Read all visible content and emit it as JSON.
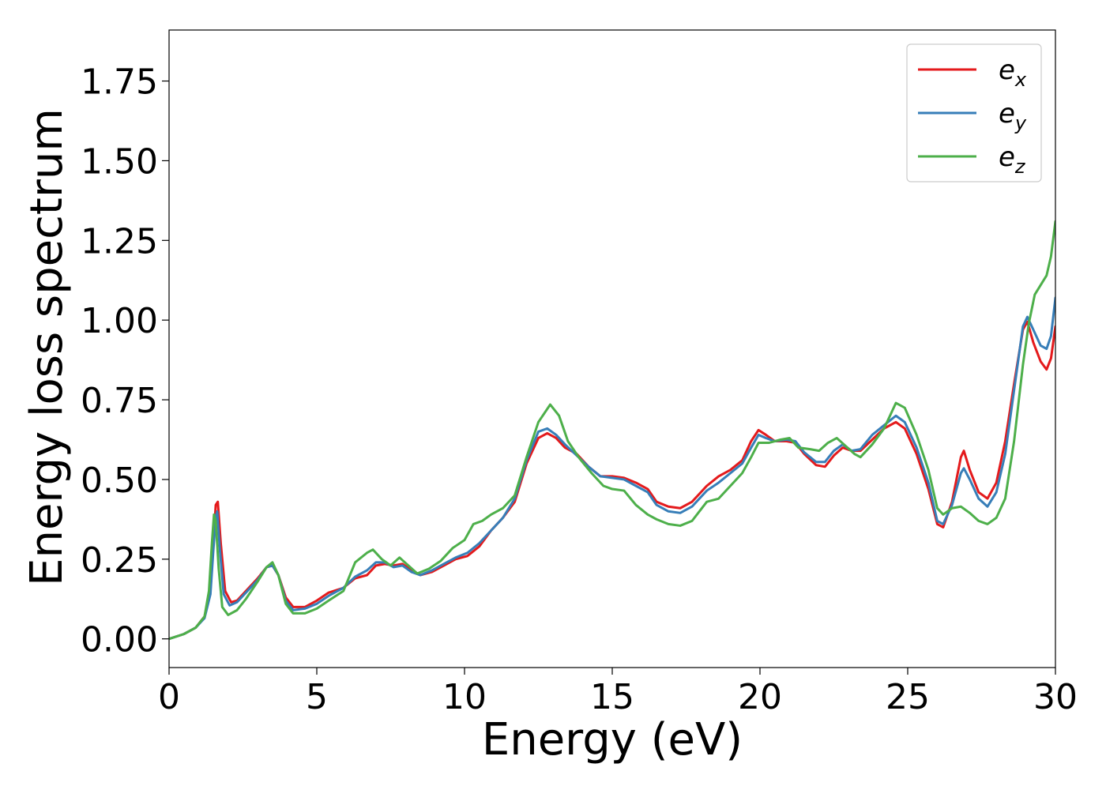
{
  "chart_data": {
    "type": "line",
    "title": "",
    "xlabel": "Energy (eV)",
    "ylabel": "Energy loss spectrum",
    "xlim": [
      0,
      30
    ],
    "ylim": [
      -0.09,
      1.91
    ],
    "xticks": [
      0,
      5,
      10,
      15,
      20,
      25,
      30
    ],
    "xtick_labels": [
      "0",
      "5",
      "10",
      "15",
      "20",
      "25",
      "30"
    ],
    "yticks": [
      0.0,
      0.25,
      0.5,
      0.75,
      1.0,
      1.25,
      1.5,
      1.75
    ],
    "ytick_labels": [
      "0.00",
      "0.25",
      "0.50",
      "0.75",
      "1.00",
      "1.25",
      "1.50",
      "1.75"
    ],
    "grid": false,
    "legend_position": "top-right",
    "series": [
      {
        "name": "e_x",
        "legend_base": "e",
        "legend_sub": "x",
        "color": "#e41a1c",
        "points": [
          [
            0,
            0
          ],
          [
            0.5,
            0.015
          ],
          [
            0.9,
            0.035
          ],
          [
            1.2,
            0.07
          ],
          [
            1.4,
            0.15
          ],
          [
            1.5,
            0.3
          ],
          [
            1.58,
            0.42
          ],
          [
            1.65,
            0.43
          ],
          [
            1.75,
            0.3
          ],
          [
            1.9,
            0.15
          ],
          [
            2.1,
            0.115
          ],
          [
            2.3,
            0.12
          ],
          [
            2.6,
            0.15
          ],
          [
            3.0,
            0.19
          ],
          [
            3.3,
            0.225
          ],
          [
            3.5,
            0.23
          ],
          [
            3.7,
            0.2
          ],
          [
            3.95,
            0.13
          ],
          [
            4.2,
            0.1
          ],
          [
            4.6,
            0.1
          ],
          [
            5.0,
            0.12
          ],
          [
            5.4,
            0.145
          ],
          [
            5.9,
            0.16
          ],
          [
            6.3,
            0.19
          ],
          [
            6.7,
            0.2
          ],
          [
            7.0,
            0.23
          ],
          [
            7.3,
            0.235
          ],
          [
            7.6,
            0.23
          ],
          [
            7.9,
            0.235
          ],
          [
            8.2,
            0.215
          ],
          [
            8.5,
            0.2
          ],
          [
            8.9,
            0.21
          ],
          [
            9.3,
            0.23
          ],
          [
            9.7,
            0.25
          ],
          [
            10.1,
            0.26
          ],
          [
            10.5,
            0.29
          ],
          [
            10.9,
            0.34
          ],
          [
            11.3,
            0.38
          ],
          [
            11.7,
            0.43
          ],
          [
            12.1,
            0.55
          ],
          [
            12.5,
            0.63
          ],
          [
            12.8,
            0.645
          ],
          [
            13.1,
            0.63
          ],
          [
            13.4,
            0.6
          ],
          [
            13.8,
            0.58
          ],
          [
            14.2,
            0.54
          ],
          [
            14.6,
            0.51
          ],
          [
            15.0,
            0.51
          ],
          [
            15.4,
            0.505
          ],
          [
            15.8,
            0.49
          ],
          [
            16.2,
            0.47
          ],
          [
            16.5,
            0.43
          ],
          [
            16.9,
            0.415
          ],
          [
            17.3,
            0.41
          ],
          [
            17.7,
            0.43
          ],
          [
            18.2,
            0.48
          ],
          [
            18.6,
            0.51
          ],
          [
            19.0,
            0.53
          ],
          [
            19.4,
            0.56
          ],
          [
            19.7,
            0.62
          ],
          [
            19.95,
            0.655
          ],
          [
            20.2,
            0.64
          ],
          [
            20.5,
            0.62
          ],
          [
            20.9,
            0.62
          ],
          [
            21.2,
            0.615
          ],
          [
            21.5,
            0.58
          ],
          [
            21.9,
            0.545
          ],
          [
            22.2,
            0.54
          ],
          [
            22.5,
            0.575
          ],
          [
            22.8,
            0.6
          ],
          [
            23.1,
            0.59
          ],
          [
            23.4,
            0.59
          ],
          [
            23.8,
            0.625
          ],
          [
            24.2,
            0.66
          ],
          [
            24.6,
            0.68
          ],
          [
            24.9,
            0.66
          ],
          [
            25.3,
            0.58
          ],
          [
            25.7,
            0.47
          ],
          [
            26.0,
            0.36
          ],
          [
            26.2,
            0.35
          ],
          [
            26.5,
            0.43
          ],
          [
            26.8,
            0.57
          ],
          [
            26.9,
            0.59
          ],
          [
            27.1,
            0.53
          ],
          [
            27.4,
            0.46
          ],
          [
            27.7,
            0.44
          ],
          [
            28.0,
            0.49
          ],
          [
            28.3,
            0.62
          ],
          [
            28.6,
            0.8
          ],
          [
            28.9,
            0.97
          ],
          [
            29.05,
            0.995
          ],
          [
            29.25,
            0.93
          ],
          [
            29.5,
            0.87
          ],
          [
            29.7,
            0.845
          ],
          [
            29.85,
            0.88
          ],
          [
            30.0,
            0.98
          ]
        ]
      },
      {
        "name": "e_y",
        "legend_base": "e",
        "legend_sub": "y",
        "color": "#377eb8",
        "points": [
          [
            0,
            0
          ],
          [
            0.5,
            0.015
          ],
          [
            0.9,
            0.035
          ],
          [
            1.2,
            0.065
          ],
          [
            1.4,
            0.14
          ],
          [
            1.5,
            0.28
          ],
          [
            1.58,
            0.38
          ],
          [
            1.63,
            0.4
          ],
          [
            1.72,
            0.28
          ],
          [
            1.85,
            0.14
          ],
          [
            2.05,
            0.105
          ],
          [
            2.3,
            0.115
          ],
          [
            2.6,
            0.145
          ],
          [
            3.0,
            0.185
          ],
          [
            3.3,
            0.225
          ],
          [
            3.5,
            0.23
          ],
          [
            3.7,
            0.2
          ],
          [
            3.95,
            0.12
          ],
          [
            4.2,
            0.09
          ],
          [
            4.6,
            0.095
          ],
          [
            5.0,
            0.11
          ],
          [
            5.4,
            0.135
          ],
          [
            5.9,
            0.16
          ],
          [
            6.3,
            0.195
          ],
          [
            6.7,
            0.215
          ],
          [
            7.0,
            0.24
          ],
          [
            7.3,
            0.24
          ],
          [
            7.6,
            0.225
          ],
          [
            7.9,
            0.23
          ],
          [
            8.2,
            0.21
          ],
          [
            8.5,
            0.2
          ],
          [
            8.9,
            0.215
          ],
          [
            9.3,
            0.235
          ],
          [
            9.7,
            0.255
          ],
          [
            10.1,
            0.27
          ],
          [
            10.5,
            0.3
          ],
          [
            10.9,
            0.34
          ],
          [
            11.3,
            0.38
          ],
          [
            11.7,
            0.44
          ],
          [
            12.1,
            0.56
          ],
          [
            12.5,
            0.65
          ],
          [
            12.8,
            0.66
          ],
          [
            13.1,
            0.64
          ],
          [
            13.4,
            0.61
          ],
          [
            13.8,
            0.575
          ],
          [
            14.2,
            0.54
          ],
          [
            14.6,
            0.51
          ],
          [
            15.0,
            0.505
          ],
          [
            15.4,
            0.5
          ],
          [
            15.8,
            0.48
          ],
          [
            16.2,
            0.46
          ],
          [
            16.5,
            0.42
          ],
          [
            16.9,
            0.4
          ],
          [
            17.3,
            0.395
          ],
          [
            17.7,
            0.415
          ],
          [
            18.2,
            0.465
          ],
          [
            18.6,
            0.49
          ],
          [
            19.0,
            0.52
          ],
          [
            19.4,
            0.55
          ],
          [
            19.7,
            0.6
          ],
          [
            19.95,
            0.64
          ],
          [
            20.2,
            0.63
          ],
          [
            20.5,
            0.62
          ],
          [
            20.9,
            0.625
          ],
          [
            21.2,
            0.62
          ],
          [
            21.5,
            0.585
          ],
          [
            21.9,
            0.555
          ],
          [
            22.2,
            0.555
          ],
          [
            22.5,
            0.59
          ],
          [
            22.8,
            0.61
          ],
          [
            23.1,
            0.59
          ],
          [
            23.4,
            0.595
          ],
          [
            23.8,
            0.64
          ],
          [
            24.2,
            0.67
          ],
          [
            24.6,
            0.7
          ],
          [
            24.9,
            0.68
          ],
          [
            25.3,
            0.6
          ],
          [
            25.7,
            0.49
          ],
          [
            26.0,
            0.37
          ],
          [
            26.2,
            0.36
          ],
          [
            26.5,
            0.42
          ],
          [
            26.8,
            0.52
          ],
          [
            26.9,
            0.535
          ],
          [
            27.1,
            0.5
          ],
          [
            27.4,
            0.44
          ],
          [
            27.7,
            0.415
          ],
          [
            28.0,
            0.46
          ],
          [
            28.3,
            0.58
          ],
          [
            28.6,
            0.78
          ],
          [
            28.9,
            0.98
          ],
          [
            29.05,
            1.01
          ],
          [
            29.25,
            0.97
          ],
          [
            29.5,
            0.92
          ],
          [
            29.7,
            0.91
          ],
          [
            29.85,
            0.95
          ],
          [
            30.0,
            1.07
          ]
        ]
      },
      {
        "name": "e_z",
        "legend_base": "e",
        "legend_sub": "z",
        "color": "#4daf4a",
        "points": [
          [
            0,
            0
          ],
          [
            0.5,
            0.015
          ],
          [
            0.9,
            0.035
          ],
          [
            1.2,
            0.07
          ],
          [
            1.35,
            0.15
          ],
          [
            1.45,
            0.3
          ],
          [
            1.52,
            0.39
          ],
          [
            1.58,
            0.37
          ],
          [
            1.68,
            0.22
          ],
          [
            1.8,
            0.1
          ],
          [
            2.0,
            0.075
          ],
          [
            2.3,
            0.09
          ],
          [
            2.6,
            0.125
          ],
          [
            3.0,
            0.18
          ],
          [
            3.3,
            0.225
          ],
          [
            3.5,
            0.24
          ],
          [
            3.7,
            0.2
          ],
          [
            3.95,
            0.11
          ],
          [
            4.2,
            0.08
          ],
          [
            4.6,
            0.08
          ],
          [
            5.0,
            0.095
          ],
          [
            5.4,
            0.12
          ],
          [
            5.9,
            0.15
          ],
          [
            6.3,
            0.24
          ],
          [
            6.7,
            0.27
          ],
          [
            6.9,
            0.28
          ],
          [
            7.2,
            0.25
          ],
          [
            7.5,
            0.23
          ],
          [
            7.8,
            0.255
          ],
          [
            8.1,
            0.23
          ],
          [
            8.4,
            0.205
          ],
          [
            8.8,
            0.22
          ],
          [
            9.2,
            0.245
          ],
          [
            9.6,
            0.285
          ],
          [
            10.0,
            0.31
          ],
          [
            10.3,
            0.36
          ],
          [
            10.6,
            0.37
          ],
          [
            10.9,
            0.39
          ],
          [
            11.3,
            0.41
          ],
          [
            11.7,
            0.45
          ],
          [
            12.1,
            0.57
          ],
          [
            12.5,
            0.68
          ],
          [
            12.9,
            0.735
          ],
          [
            13.2,
            0.7
          ],
          [
            13.5,
            0.62
          ],
          [
            13.9,
            0.565
          ],
          [
            14.3,
            0.52
          ],
          [
            14.7,
            0.48
          ],
          [
            15.0,
            0.47
          ],
          [
            15.4,
            0.465
          ],
          [
            15.8,
            0.42
          ],
          [
            16.2,
            0.39
          ],
          [
            16.5,
            0.375
          ],
          [
            16.9,
            0.36
          ],
          [
            17.3,
            0.355
          ],
          [
            17.7,
            0.37
          ],
          [
            18.2,
            0.43
          ],
          [
            18.6,
            0.44
          ],
          [
            19.0,
            0.48
          ],
          [
            19.4,
            0.52
          ],
          [
            19.7,
            0.57
          ],
          [
            19.95,
            0.615
          ],
          [
            20.3,
            0.615
          ],
          [
            20.7,
            0.625
          ],
          [
            21.0,
            0.63
          ],
          [
            21.3,
            0.6
          ],
          [
            21.7,
            0.595
          ],
          [
            22.0,
            0.59
          ],
          [
            22.3,
            0.615
          ],
          [
            22.6,
            0.63
          ],
          [
            22.9,
            0.605
          ],
          [
            23.2,
            0.58
          ],
          [
            23.4,
            0.57
          ],
          [
            23.8,
            0.61
          ],
          [
            24.2,
            0.66
          ],
          [
            24.6,
            0.74
          ],
          [
            24.9,
            0.725
          ],
          [
            25.3,
            0.64
          ],
          [
            25.7,
            0.53
          ],
          [
            26.0,
            0.41
          ],
          [
            26.2,
            0.39
          ],
          [
            26.5,
            0.41
          ],
          [
            26.8,
            0.415
          ],
          [
            27.1,
            0.395
          ],
          [
            27.4,
            0.37
          ],
          [
            27.7,
            0.36
          ],
          [
            28.0,
            0.38
          ],
          [
            28.3,
            0.44
          ],
          [
            28.6,
            0.62
          ],
          [
            28.9,
            0.86
          ],
          [
            29.1,
            0.99
          ],
          [
            29.3,
            1.08
          ],
          [
            29.5,
            1.11
          ],
          [
            29.7,
            1.14
          ],
          [
            29.85,
            1.2
          ],
          [
            30.0,
            1.31
          ]
        ]
      }
    ]
  }
}
